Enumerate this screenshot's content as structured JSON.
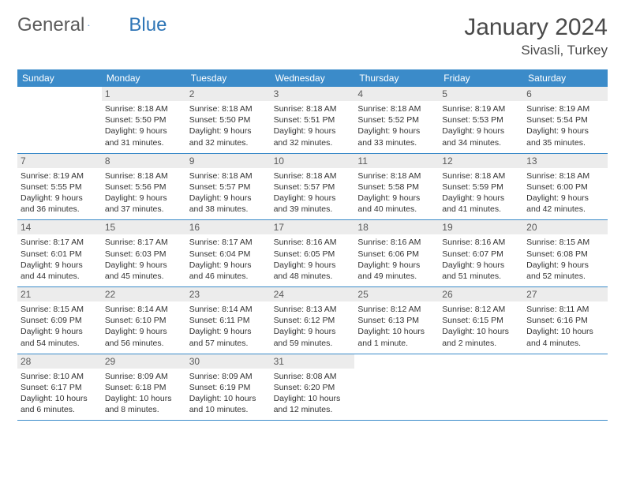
{
  "logo": {
    "text1": "General",
    "text2": "Blue"
  },
  "title": "January 2024",
  "location": "Sivasli, Turkey",
  "colors": {
    "header_bg": "#3b8bc9",
    "header_fg": "#ffffff",
    "daynum_bg": "#ececec",
    "row_border": "#3b8bc9",
    "logo_gray": "#5a5a5a",
    "logo_blue": "#2e75b6"
  },
  "day_names": [
    "Sunday",
    "Monday",
    "Tuesday",
    "Wednesday",
    "Thursday",
    "Friday",
    "Saturday"
  ],
  "weeks": [
    [
      {
        "empty": true
      },
      {
        "n": "1",
        "sunrise": "8:18 AM",
        "sunset": "5:50 PM",
        "dl1": "Daylight: 9 hours",
        "dl2": "and 31 minutes."
      },
      {
        "n": "2",
        "sunrise": "8:18 AM",
        "sunset": "5:50 PM",
        "dl1": "Daylight: 9 hours",
        "dl2": "and 32 minutes."
      },
      {
        "n": "3",
        "sunrise": "8:18 AM",
        "sunset": "5:51 PM",
        "dl1": "Daylight: 9 hours",
        "dl2": "and 32 minutes."
      },
      {
        "n": "4",
        "sunrise": "8:18 AM",
        "sunset": "5:52 PM",
        "dl1": "Daylight: 9 hours",
        "dl2": "and 33 minutes."
      },
      {
        "n": "5",
        "sunrise": "8:19 AM",
        "sunset": "5:53 PM",
        "dl1": "Daylight: 9 hours",
        "dl2": "and 34 minutes."
      },
      {
        "n": "6",
        "sunrise": "8:19 AM",
        "sunset": "5:54 PM",
        "dl1": "Daylight: 9 hours",
        "dl2": "and 35 minutes."
      }
    ],
    [
      {
        "n": "7",
        "sunrise": "8:19 AM",
        "sunset": "5:55 PM",
        "dl1": "Daylight: 9 hours",
        "dl2": "and 36 minutes."
      },
      {
        "n": "8",
        "sunrise": "8:18 AM",
        "sunset": "5:56 PM",
        "dl1": "Daylight: 9 hours",
        "dl2": "and 37 minutes."
      },
      {
        "n": "9",
        "sunrise": "8:18 AM",
        "sunset": "5:57 PM",
        "dl1": "Daylight: 9 hours",
        "dl2": "and 38 minutes."
      },
      {
        "n": "10",
        "sunrise": "8:18 AM",
        "sunset": "5:57 PM",
        "dl1": "Daylight: 9 hours",
        "dl2": "and 39 minutes."
      },
      {
        "n": "11",
        "sunrise": "8:18 AM",
        "sunset": "5:58 PM",
        "dl1": "Daylight: 9 hours",
        "dl2": "and 40 minutes."
      },
      {
        "n": "12",
        "sunrise": "8:18 AM",
        "sunset": "5:59 PM",
        "dl1": "Daylight: 9 hours",
        "dl2": "and 41 minutes."
      },
      {
        "n": "13",
        "sunrise": "8:18 AM",
        "sunset": "6:00 PM",
        "dl1": "Daylight: 9 hours",
        "dl2": "and 42 minutes."
      }
    ],
    [
      {
        "n": "14",
        "sunrise": "8:17 AM",
        "sunset": "6:01 PM",
        "dl1": "Daylight: 9 hours",
        "dl2": "and 44 minutes."
      },
      {
        "n": "15",
        "sunrise": "8:17 AM",
        "sunset": "6:03 PM",
        "dl1": "Daylight: 9 hours",
        "dl2": "and 45 minutes."
      },
      {
        "n": "16",
        "sunrise": "8:17 AM",
        "sunset": "6:04 PM",
        "dl1": "Daylight: 9 hours",
        "dl2": "and 46 minutes."
      },
      {
        "n": "17",
        "sunrise": "8:16 AM",
        "sunset": "6:05 PM",
        "dl1": "Daylight: 9 hours",
        "dl2": "and 48 minutes."
      },
      {
        "n": "18",
        "sunrise": "8:16 AM",
        "sunset": "6:06 PM",
        "dl1": "Daylight: 9 hours",
        "dl2": "and 49 minutes."
      },
      {
        "n": "19",
        "sunrise": "8:16 AM",
        "sunset": "6:07 PM",
        "dl1": "Daylight: 9 hours",
        "dl2": "and 51 minutes."
      },
      {
        "n": "20",
        "sunrise": "8:15 AM",
        "sunset": "6:08 PM",
        "dl1": "Daylight: 9 hours",
        "dl2": "and 52 minutes."
      }
    ],
    [
      {
        "n": "21",
        "sunrise": "8:15 AM",
        "sunset": "6:09 PM",
        "dl1": "Daylight: 9 hours",
        "dl2": "and 54 minutes."
      },
      {
        "n": "22",
        "sunrise": "8:14 AM",
        "sunset": "6:10 PM",
        "dl1": "Daylight: 9 hours",
        "dl2": "and 56 minutes."
      },
      {
        "n": "23",
        "sunrise": "8:14 AM",
        "sunset": "6:11 PM",
        "dl1": "Daylight: 9 hours",
        "dl2": "and 57 minutes."
      },
      {
        "n": "24",
        "sunrise": "8:13 AM",
        "sunset": "6:12 PM",
        "dl1": "Daylight: 9 hours",
        "dl2": "and 59 minutes."
      },
      {
        "n": "25",
        "sunrise": "8:12 AM",
        "sunset": "6:13 PM",
        "dl1": "Daylight: 10 hours",
        "dl2": "and 1 minute."
      },
      {
        "n": "26",
        "sunrise": "8:12 AM",
        "sunset": "6:15 PM",
        "dl1": "Daylight: 10 hours",
        "dl2": "and 2 minutes."
      },
      {
        "n": "27",
        "sunrise": "8:11 AM",
        "sunset": "6:16 PM",
        "dl1": "Daylight: 10 hours",
        "dl2": "and 4 minutes."
      }
    ],
    [
      {
        "n": "28",
        "sunrise": "8:10 AM",
        "sunset": "6:17 PM",
        "dl1": "Daylight: 10 hours",
        "dl2": "and 6 minutes."
      },
      {
        "n": "29",
        "sunrise": "8:09 AM",
        "sunset": "6:18 PM",
        "dl1": "Daylight: 10 hours",
        "dl2": "and 8 minutes."
      },
      {
        "n": "30",
        "sunrise": "8:09 AM",
        "sunset": "6:19 PM",
        "dl1": "Daylight: 10 hours",
        "dl2": "and 10 minutes."
      },
      {
        "n": "31",
        "sunrise": "8:08 AM",
        "sunset": "6:20 PM",
        "dl1": "Daylight: 10 hours",
        "dl2": "and 12 minutes."
      },
      {
        "empty": true
      },
      {
        "empty": true
      },
      {
        "empty": true
      }
    ]
  ]
}
